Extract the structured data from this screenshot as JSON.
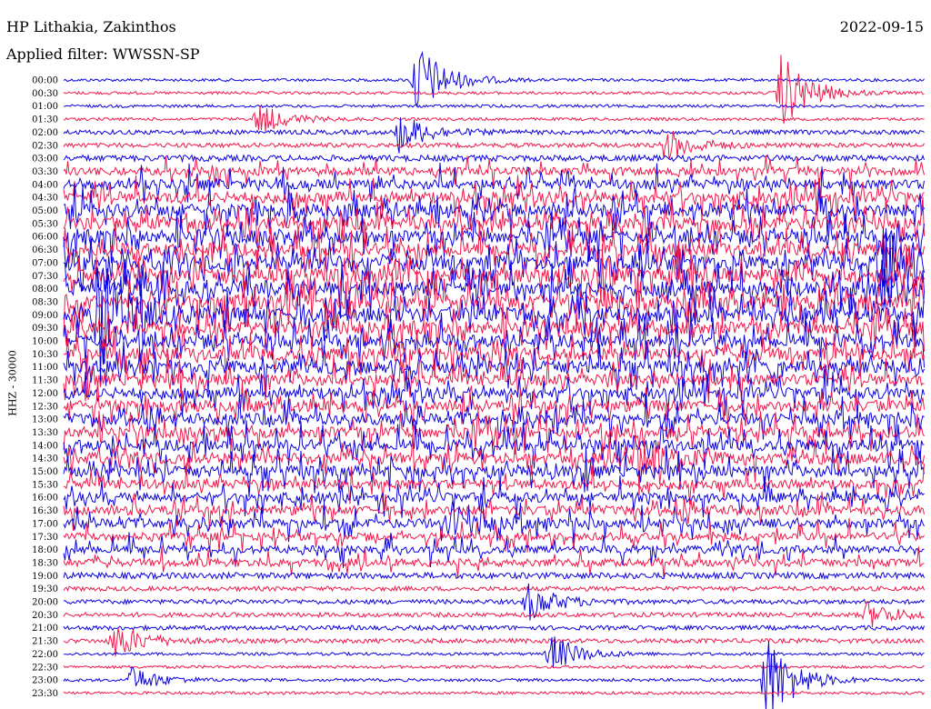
{
  "header": {
    "station": "HP Lithakia, Zakinthos",
    "filter": "Applied filter: WWSSN-SP",
    "date": "2022-09-15"
  },
  "channel_label": "HHZ - 30000",
  "colors": {
    "trace_a": "#0a00e0",
    "trace_b": "#f0184a",
    "text": "#000000"
  },
  "chart_data": {
    "type": "seismogram-helicorder",
    "title": "HP Lithakia, Zakinthos",
    "subtitle": "Applied filter: WWSSN-SP",
    "date": "2022-09-15",
    "ylabel": "HHZ - 30000",
    "minutes_per_line": 30,
    "row_labels": [
      "00:00",
      "00:30",
      "01:00",
      "01:30",
      "02:00",
      "02:30",
      "03:00",
      "03:30",
      "04:00",
      "04:30",
      "05:00",
      "05:30",
      "06:00",
      "06:30",
      "07:00",
      "07:30",
      "08:00",
      "08:30",
      "09:00",
      "09:30",
      "10:00",
      "10:30",
      "11:00",
      "11:30",
      "12:00",
      "12:30",
      "13:00",
      "13:30",
      "14:00",
      "14:30",
      "15:00",
      "15:30",
      "16:00",
      "16:30",
      "17:00",
      "17:30",
      "18:00",
      "18:30",
      "19:00",
      "19:30",
      "20:00",
      "20:30",
      "21:00",
      "21:30",
      "22:00",
      "22:30",
      "23:00",
      "23:30"
    ],
    "noise_level": [
      1,
      1,
      1,
      1,
      2,
      2,
      3,
      4,
      5,
      6,
      7,
      7,
      7,
      7,
      8,
      8,
      8,
      8,
      8,
      7,
      7,
      7,
      7,
      6,
      6,
      6,
      6,
      6,
      6,
      6,
      6,
      5,
      5,
      5,
      5,
      4,
      4,
      4,
      3,
      2,
      2,
      2,
      2,
      2,
      1,
      1,
      1,
      1
    ],
    "events": [
      {
        "row": 0,
        "minute": 12.3,
        "amplitude": 3.0
      },
      {
        "row": 1,
        "minute": 25.0,
        "amplitude": 3.0
      },
      {
        "row": 3,
        "minute": 6.8,
        "amplitude": 1.2
      },
      {
        "row": 4,
        "minute": 11.7,
        "amplitude": 1.5
      },
      {
        "row": 5,
        "minute": 21.0,
        "amplitude": 1.3
      },
      {
        "row": 14,
        "minute": 28.5,
        "amplitude": 3.5
      },
      {
        "row": 18,
        "minute": 1.2,
        "amplitude": 4.0
      },
      {
        "row": 29,
        "minute": 20.0,
        "amplitude": 2.2
      },
      {
        "row": 34,
        "minute": 13.5,
        "amplitude": 1.5
      },
      {
        "row": 40,
        "minute": 16.2,
        "amplitude": 1.4
      },
      {
        "row": 41,
        "minute": 28.0,
        "amplitude": 1.0
      },
      {
        "row": 43,
        "minute": 1.8,
        "amplitude": 1.4
      },
      {
        "row": 44,
        "minute": 17.0,
        "amplitude": 1.5
      },
      {
        "row": 46,
        "minute": 24.5,
        "amplitude": 3.6
      },
      {
        "row": 46,
        "minute": 2.4,
        "amplitude": 1.0
      }
    ]
  }
}
